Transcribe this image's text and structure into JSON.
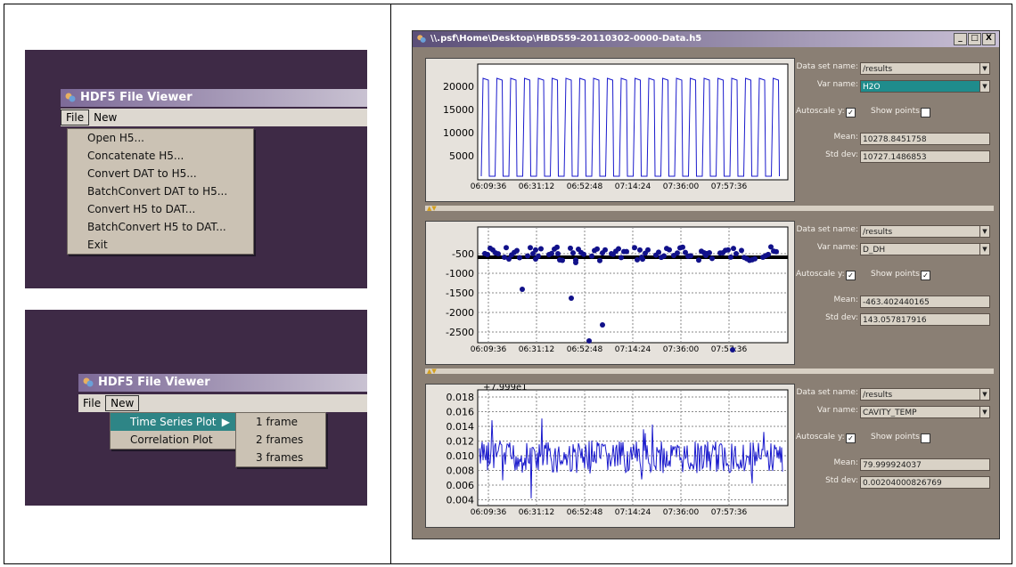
{
  "app": {
    "title": "HDF5 File Viewer"
  },
  "menus": {
    "file": "File",
    "new": "New"
  },
  "file_menu_items": [
    "Open H5...",
    "Concatenate H5...",
    "Convert DAT to H5...",
    "BatchConvert DAT to H5...",
    "Convert H5 to DAT...",
    "BatchConvert H5 to DAT...",
    "Exit"
  ],
  "new_menu_items": [
    "Time Series Plot",
    "Correlation Plot"
  ],
  "frames_submenu": [
    "1 frame",
    "2 frames",
    "3 frames"
  ],
  "window": {
    "title": "\\\\.psf\\Home\\Desktop\\HBDS59-20110302-0000-Data.h5",
    "buttons": [
      "_",
      "□",
      "X"
    ]
  },
  "labels": {
    "dataset": "Data set name:",
    "varname": "Var name:",
    "autoscale": "Autoscale y:",
    "showpoints": "Show points:",
    "mean": "Mean:",
    "stddev": "Std dev:"
  },
  "panels": [
    {
      "dataset": "/results",
      "var": "H2O",
      "autoscale": "☑",
      "showpoints": "☐",
      "mean": "10278.8451758",
      "stddev": "10727.1486853",
      "yticks": [
        "20000",
        "15000",
        "10000",
        "5000"
      ],
      "offset": ""
    },
    {
      "dataset": "/results",
      "var": "D_DH",
      "autoscale": "☑",
      "showpoints": "☑",
      "mean": "-463.402440165",
      "stddev": "143.057817916",
      "yticks": [
        "-500",
        "-1000",
        "-1500",
        "-2000",
        "-2500"
      ],
      "offset": ""
    },
    {
      "dataset": "/results",
      "var": "CAVITY_TEMP",
      "autoscale": "☑",
      "showpoints": "☐",
      "mean": "79.999924037",
      "stddev": "0.00204000826769",
      "yticks": [
        "0.018",
        "0.016",
        "0.014",
        "0.012",
        "0.010",
        "0.008",
        "0.006",
        "0.004"
      ],
      "offset": "+7.999e1"
    }
  ],
  "xticks": [
    "06:09:36",
    "06:31:12",
    "06:52:48",
    "07:14:24",
    "07:36:00",
    "07:57:36"
  ],
  "colors": {
    "accent": "#2e8586",
    "series": "#1a1acc",
    "points": "#11118a"
  },
  "icons": {
    "app": "app-icon",
    "dropdown": "chevron-down-icon",
    "split": "triangle-icon"
  }
}
